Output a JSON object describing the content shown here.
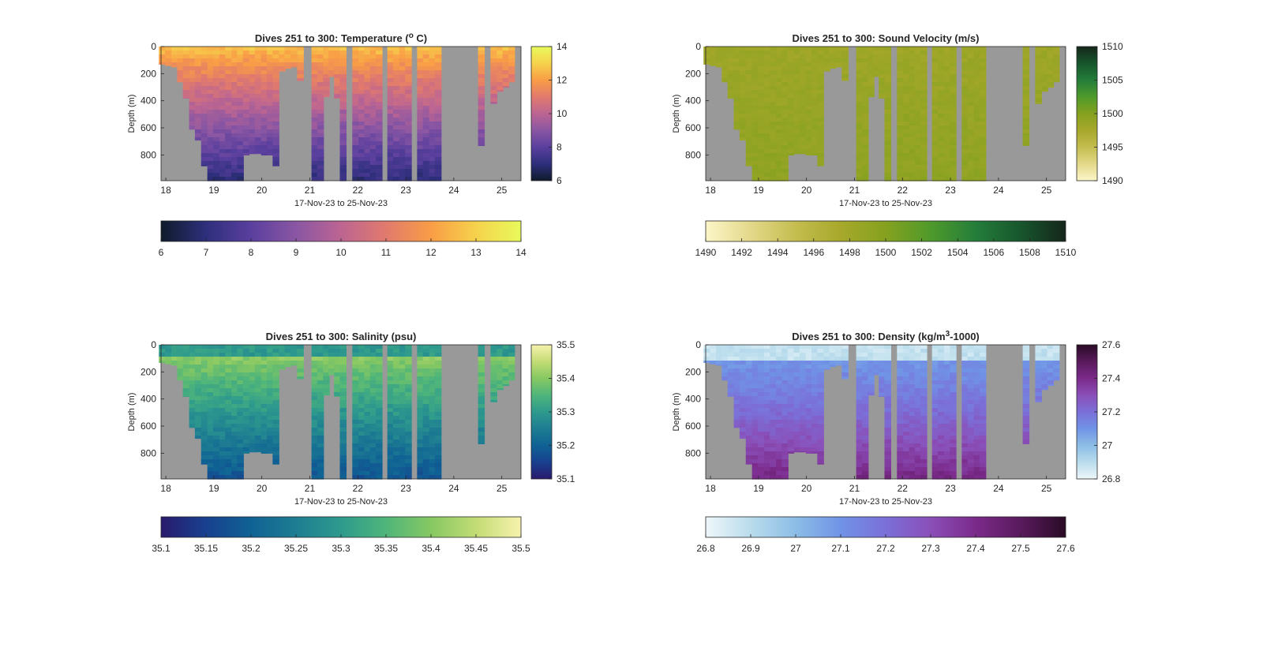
{
  "figure": {
    "background": "#ffffff",
    "mask_color": "#999999",
    "frame_color": "#262626"
  },
  "chart_data": [
    {
      "id": "temperature",
      "type": "heatmap",
      "title": "Dives 251 to 300: Temperature (",
      "title_sup": "o",
      "title_tail": " C)",
      "xlabel": "17-Nov-23 to 25-Nov-23",
      "ylabel": "Depth (m)",
      "x_ticks": [
        "18",
        "19",
        "20",
        "21",
        "22",
        "23",
        "24",
        "25"
      ],
      "x_tick_values": [
        18,
        19,
        20,
        21,
        22,
        23,
        24,
        25
      ],
      "xlim": [
        17.9,
        25.4
      ],
      "y_ticks": [
        "0",
        "200",
        "400",
        "600",
        "800"
      ],
      "y_tick_values": [
        0,
        200,
        400,
        600,
        800
      ],
      "ylim": [
        0,
        990
      ],
      "y_reversed": true,
      "colorbar": {
        "range": [
          6,
          14
        ],
        "side_ticks": [
          "6",
          "8",
          "10",
          "12",
          "14"
        ],
        "side_tick_values": [
          6,
          8,
          10,
          12,
          14
        ],
        "bottom_ticks": [
          "6",
          "7",
          "8",
          "9",
          "10",
          "11",
          "12",
          "13",
          "14"
        ],
        "bottom_tick_values": [
          6,
          7,
          8,
          9,
          10,
          11,
          12,
          13,
          14
        ],
        "colormap": [
          "#0f1b2a",
          "#2e2f7c",
          "#5a3f9e",
          "#8a56a3",
          "#bc6592",
          "#e17a6d",
          "#f99d46",
          "#f6d24c",
          "#e8fa5b"
        ]
      },
      "profile": {
        "surface": 12.8,
        "deep": 7.0,
        "noise": 0.35
      }
    },
    {
      "id": "sound-velocity",
      "type": "heatmap",
      "title": "Dives 251 to 300: Sound Velocity (m/s)",
      "xlabel": "17-Nov-23 to 25-Nov-23",
      "ylabel": "Depth (m)",
      "x_ticks": [
        "18",
        "19",
        "20",
        "21",
        "22",
        "23",
        "24",
        "25"
      ],
      "x_tick_values": [
        18,
        19,
        20,
        21,
        22,
        23,
        24,
        25
      ],
      "xlim": [
        17.9,
        25.4
      ],
      "y_ticks": [
        "0",
        "200",
        "400",
        "600",
        "800"
      ],
      "y_tick_values": [
        0,
        200,
        400,
        600,
        800
      ],
      "ylim": [
        0,
        990
      ],
      "y_reversed": true,
      "colorbar": {
        "range": [
          1490,
          1510
        ],
        "side_ticks": [
          "1490",
          "1495",
          "1500",
          "1505",
          "1510"
        ],
        "side_tick_values": [
          1490,
          1495,
          1500,
          1505,
          1510
        ],
        "bottom_ticks": [
          "1490",
          "1492",
          "1494",
          "1496",
          "1498",
          "1500",
          "1502",
          "1504",
          "1506",
          "1508",
          "1510"
        ],
        "bottom_tick_values": [
          1490,
          1492,
          1494,
          1496,
          1498,
          1500,
          1502,
          1504,
          1506,
          1508,
          1510
        ],
        "colormap": [
          "#fcf6c8",
          "#e3d88a",
          "#c4bd4f",
          "#a7a82b",
          "#85a11f",
          "#4f9a2b",
          "#247d3a",
          "#17562d",
          "#15261a"
        ]
      },
      "profile": {
        "surface": 1498.2,
        "deep": 1499.3,
        "noise": 0.5
      }
    },
    {
      "id": "salinity",
      "type": "heatmap",
      "title": "Dives 251 to 300: Salinity (psu)",
      "xlabel": "17-Nov-23 to 25-Nov-23",
      "ylabel": "Depth (m)",
      "x_ticks": [
        "18",
        "19",
        "20",
        "21",
        "22",
        "23",
        "24",
        "25"
      ],
      "x_tick_values": [
        18,
        19,
        20,
        21,
        22,
        23,
        24,
        25
      ],
      "xlim": [
        17.9,
        25.4
      ],
      "y_ticks": [
        "0",
        "200",
        "400",
        "600",
        "800"
      ],
      "y_tick_values": [
        0,
        200,
        400,
        600,
        800
      ],
      "ylim": [
        0,
        990
      ],
      "y_reversed": true,
      "colorbar": {
        "range": [
          35.1,
          35.5
        ],
        "side_ticks": [
          "35.1",
          "35.2",
          "35.3",
          "35.4",
          "35.5"
        ],
        "side_tick_values": [
          35.1,
          35.2,
          35.3,
          35.4,
          35.5
        ],
        "bottom_ticks": [
          "35.1",
          "35.15",
          "35.2",
          "35.25",
          "35.3",
          "35.35",
          "35.4",
          "35.45",
          "35.5"
        ],
        "bottom_tick_values": [
          35.1,
          35.15,
          35.2,
          35.25,
          35.3,
          35.35,
          35.4,
          35.45,
          35.5
        ],
        "colormap": [
          "#291a6c",
          "#18408f",
          "#0f6294",
          "#1e7d92",
          "#2e9a8d",
          "#4fb57a",
          "#86c862",
          "#c3dc75",
          "#f7f2ad"
        ]
      },
      "profile": {
        "surface": 35.3,
        "peak": 35.41,
        "deep": 35.18,
        "noise": 0.02
      }
    },
    {
      "id": "density",
      "type": "heatmap",
      "title": "Dives 251 to 300: Density (kg/m",
      "title_sup": "3",
      "title_tail": "-1000)",
      "xlabel": "17-Nov-23 to 25-Nov-23",
      "ylabel": "Depth (m)",
      "x_ticks": [
        "18",
        "19",
        "20",
        "21",
        "22",
        "23",
        "24",
        "25"
      ],
      "x_tick_values": [
        18,
        19,
        20,
        21,
        22,
        23,
        24,
        25
      ],
      "xlim": [
        17.9,
        25.4
      ],
      "y_ticks": [
        "0",
        "200",
        "400",
        "600",
        "800"
      ],
      "y_tick_values": [
        0,
        200,
        400,
        600,
        800
      ],
      "ylim": [
        0,
        990
      ],
      "y_reversed": true,
      "colorbar": {
        "range": [
          26.8,
          27.6
        ],
        "side_ticks": [
          "26.8",
          "27",
          "27.2",
          "27.4",
          "27.6"
        ],
        "side_tick_values": [
          26.8,
          27.0,
          27.2,
          27.4,
          27.6
        ],
        "bottom_ticks": [
          "26.8",
          "26.9",
          "27",
          "27.1",
          "27.2",
          "27.3",
          "27.4",
          "27.5",
          "27.6"
        ],
        "bottom_tick_values": [
          26.8,
          26.9,
          27.0,
          27.1,
          27.2,
          27.3,
          27.4,
          27.5,
          27.6
        ],
        "colormap": [
          "#eef7fa",
          "#b9dcec",
          "#8cbde6",
          "#7093e6",
          "#7b6fd8",
          "#8a4fb8",
          "#7b2a8a",
          "#591a5c",
          "#2a0b26"
        ]
      },
      "profile": {
        "surface": 26.88,
        "deep": 27.42,
        "noise": 0.03
      }
    }
  ],
  "dives": {
    "columns": [
      {
        "t": 17.92,
        "max_depth": 130
      },
      {
        "t": 18.05,
        "max_depth": 140
      },
      {
        "t": 18.18,
        "max_depth": 150
      },
      {
        "t": 18.3,
        "max_depth": 260
      },
      {
        "t": 18.42,
        "max_depth": 380
      },
      {
        "t": 18.55,
        "max_depth": 610
      },
      {
        "t": 18.67,
        "max_depth": 690
      },
      {
        "t": 18.8,
        "max_depth": 880
      },
      {
        "t": 18.93,
        "max_depth": 990
      },
      {
        "t": 19.05,
        "max_depth": 990
      },
      {
        "t": 19.18,
        "max_depth": 990
      },
      {
        "t": 19.3,
        "max_depth": 990
      },
      {
        "t": 19.43,
        "max_depth": 990
      },
      {
        "t": 19.55,
        "max_depth": 990
      },
      {
        "t": 19.67,
        "max_depth": 800
      },
      {
        "t": 19.8,
        "max_depth": 790
      },
      {
        "t": 19.92,
        "max_depth": 790
      },
      {
        "t": 20.05,
        "max_depth": 800
      },
      {
        "t": 20.17,
        "max_depth": 800
      },
      {
        "t": 20.29,
        "max_depth": 880
      },
      {
        "t": 20.42,
        "max_depth": 180
      },
      {
        "t": 20.54,
        "max_depth": 160
      },
      {
        "t": 20.66,
        "max_depth": 150
      },
      {
        "t": 20.8,
        "max_depth": 250
      },
      {
        "t": 20.92,
        "max_depth": 0
      },
      {
        "t": 21.1,
        "max_depth": 990
      },
      {
        "t": 21.22,
        "max_depth": 990
      },
      {
        "t": 21.34,
        "max_depth": 370
      },
      {
        "t": 21.45,
        "max_depth": 220
      },
      {
        "t": 21.57,
        "max_depth": 380
      },
      {
        "t": 21.69,
        "max_depth": 990
      },
      {
        "t": 21.8,
        "max_depth": 0
      },
      {
        "t": 21.95,
        "max_depth": 990
      },
      {
        "t": 22.08,
        "max_depth": 990
      },
      {
        "t": 22.2,
        "max_depth": 990
      },
      {
        "t": 22.32,
        "max_depth": 990
      },
      {
        "t": 22.44,
        "max_depth": 990
      },
      {
        "t": 22.56,
        "max_depth": 0
      },
      {
        "t": 22.68,
        "max_depth": 990
      },
      {
        "t": 22.8,
        "max_depth": 990
      },
      {
        "t": 22.93,
        "max_depth": 990
      },
      {
        "t": 23.05,
        "max_depth": 990
      },
      {
        "t": 23.17,
        "max_depth": 0
      },
      {
        "t": 23.3,
        "max_depth": 990
      },
      {
        "t": 23.42,
        "max_depth": 990
      },
      {
        "t": 23.55,
        "max_depth": 990
      },
      {
        "t": 23.67,
        "max_depth": 990
      },
      {
        "t": 23.8,
        "max_depth": 0
      },
      {
        "t": 24.0,
        "max_depth": 0
      },
      {
        "t": 24.2,
        "max_depth": 0
      },
      {
        "t": 24.4,
        "max_depth": 0
      },
      {
        "t": 24.57,
        "max_depth": 730
      },
      {
        "t": 24.7,
        "max_depth": 0
      },
      {
        "t": 24.83,
        "max_depth": 420
      },
      {
        "t": 24.96,
        "max_depth": 330
      },
      {
        "t": 25.08,
        "max_depth": 300
      },
      {
        "t": 25.2,
        "max_depth": 260
      },
      {
        "t": 25.32,
        "max_depth": 0
      }
    ]
  }
}
